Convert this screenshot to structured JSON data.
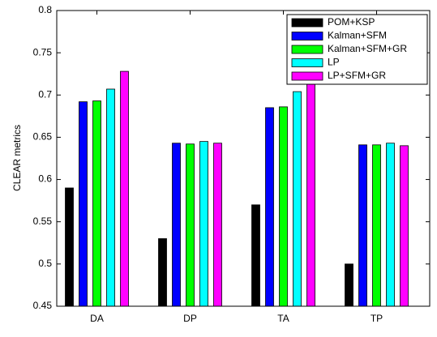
{
  "chart_data": {
    "type": "bar",
    "ylabel": "CLEAR  metrics",
    "categories": [
      "DA",
      "DP",
      "TA",
      "TP"
    ],
    "series": [
      {
        "name": "POM+KSP",
        "color": "#000000",
        "values": [
          0.59,
          0.53,
          0.57,
          0.5
        ]
      },
      {
        "name": "Kalman+SFM",
        "color": "#0000ff",
        "values": [
          0.692,
          0.643,
          0.685,
          0.641
        ]
      },
      {
        "name": "Kalman+SFM+GR",
        "color": "#00ff00",
        "values": [
          0.693,
          0.642,
          0.686,
          0.641
        ]
      },
      {
        "name": "LP",
        "color": "#00ffff",
        "values": [
          0.707,
          0.645,
          0.704,
          0.643
        ]
      },
      {
        "name": "LP+SFM+GR",
        "color": "#ff00ff",
        "values": [
          0.728,
          0.643,
          0.72,
          0.64
        ]
      }
    ],
    "ylim": [
      0.45,
      0.8
    ],
    "yticks": [
      0.45,
      0.5,
      0.55,
      0.6,
      0.65,
      0.7,
      0.75,
      0.8
    ],
    "legend": "upper right"
  }
}
